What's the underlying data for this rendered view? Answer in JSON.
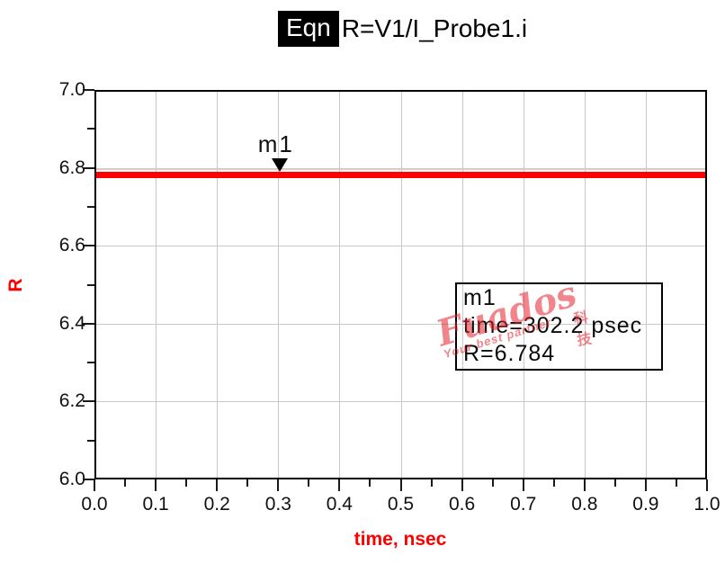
{
  "title": {
    "badge": "Eqn",
    "equation": "R=V1/I_Probe1.i"
  },
  "axes": {
    "x_label": "time, nsec",
    "y_label": "R",
    "x_tick_labels": [
      "0.0",
      "0.1",
      "0.2",
      "0.3",
      "0.4",
      "0.5",
      "0.6",
      "0.7",
      "0.8",
      "0.9",
      "1.0"
    ],
    "y_tick_labels": [
      "6.0",
      "6.2",
      "6.4",
      "6.6",
      "6.8",
      "7.0"
    ]
  },
  "marker_flag": {
    "label": "m1"
  },
  "annotation": {
    "line1": "m1",
    "line2": "time=302.2 psec",
    "line3": "R=6.784"
  },
  "watermark": {
    "main": "Fuados",
    "sub": "Your best partner",
    "cn": "科技"
  },
  "colors": {
    "trace": "#ff0000",
    "axis_title": "#ff0000",
    "grid": "#c8c8c8",
    "frame": "#000000",
    "text": "#111111",
    "badge_bg": "#000000",
    "badge_fg": "#ffffff"
  },
  "chart_data": {
    "type": "line",
    "title": "Eqn R=V1/I_Probe1.i",
    "xlabel": "time, nsec",
    "ylabel": "R",
    "xlim": [
      0.0,
      1.0
    ],
    "ylim": [
      6.0,
      7.0
    ],
    "x_major_ticks": [
      0.0,
      0.1,
      0.2,
      0.3,
      0.4,
      0.5,
      0.6,
      0.7,
      0.8,
      0.9,
      1.0
    ],
    "x_minor_tick_step": 0.05,
    "y_major_ticks": [
      6.0,
      6.2,
      6.4,
      6.6,
      6.8,
      7.0
    ],
    "y_minor_tick_step": 0.1,
    "grid": "major",
    "legend": "none",
    "series": [
      {
        "name": "R",
        "expression": "R=V1/I_Probe1.i",
        "color": "#ff0000",
        "shape": "constant-horizontal-line",
        "x": [
          0.0,
          1.0
        ],
        "y": [
          6.784,
          6.784
        ]
      }
    ],
    "markers": [
      {
        "id": "m1",
        "x_nsec": 0.3022,
        "y": 6.784,
        "x_readout": "time=302.2 psec",
        "y_readout": "R=6.784"
      }
    ]
  }
}
